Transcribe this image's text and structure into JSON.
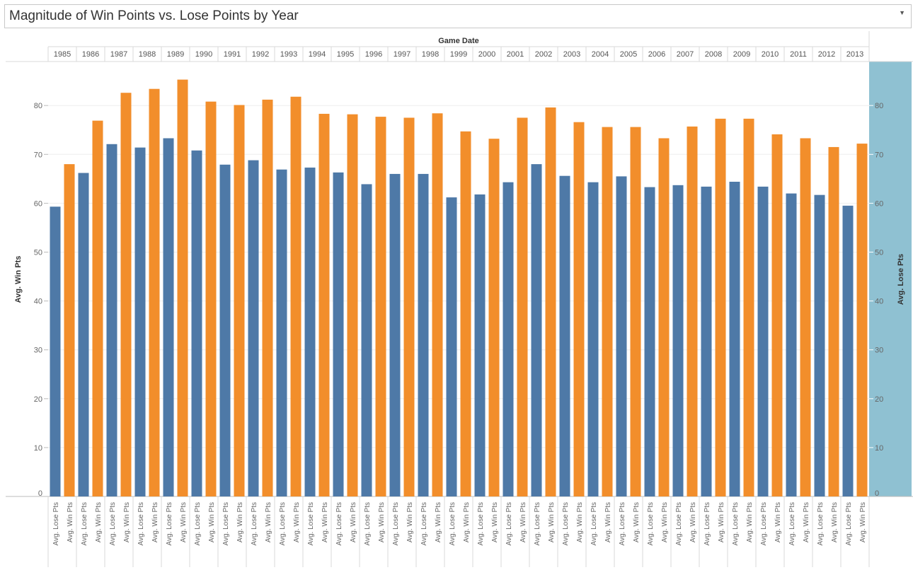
{
  "title": "Magnitude of Win Points vs. Lose Points by Year",
  "dropdown_icon": "chevron-down-icon",
  "colors": {
    "lose": "#4e79a7",
    "win": "#f28e2b",
    "right_axis_bg": "#8fc1d2",
    "grid": "#eeeeee",
    "divider": "#d9d9d9"
  },
  "chart_data": {
    "type": "bar",
    "column_header": "Game Date",
    "categories": [
      "1985",
      "1986",
      "1987",
      "1988",
      "1989",
      "1990",
      "1991",
      "1992",
      "1993",
      "1994",
      "1995",
      "1996",
      "1997",
      "1998",
      "1999",
      "2000",
      "2001",
      "2002",
      "2003",
      "2004",
      "2005",
      "2006",
      "2007",
      "2008",
      "2009",
      "2010",
      "2011",
      "2012",
      "2013"
    ],
    "bar_labels": [
      "Avg. Lose Pts",
      "Avg. Win Pts"
    ],
    "series": [
      {
        "name": "Avg. Lose Pts",
        "values": [
          59.3,
          66.2,
          72.1,
          71.4,
          73.3,
          70.8,
          67.9,
          68.8,
          66.9,
          67.3,
          66.3,
          63.9,
          66.0,
          66.0,
          61.2,
          61.8,
          64.3,
          68.0,
          65.6,
          64.3,
          65.5,
          63.3,
          63.7,
          63.4,
          64.4,
          63.4,
          62.0,
          61.7,
          59.5
        ]
      },
      {
        "name": "Avg. Win Pts",
        "values": [
          68.0,
          76.9,
          82.6,
          83.4,
          85.3,
          80.8,
          80.1,
          81.2,
          81.8,
          78.3,
          78.2,
          77.7,
          77.5,
          78.4,
          74.7,
          73.2,
          77.5,
          79.6,
          76.6,
          75.6,
          75.6,
          73.3,
          75.7,
          77.3,
          77.3,
          74.1,
          73.3,
          71.5,
          72.2
        ]
      }
    ],
    "left_axis_label": "Avg. Win Pts",
    "right_axis_label": "Avg. Lose Pts",
    "y_ticks": [
      0,
      10,
      20,
      30,
      40,
      50,
      60,
      70,
      80
    ],
    "ylim": [
      0,
      89
    ],
    "grid": true
  }
}
